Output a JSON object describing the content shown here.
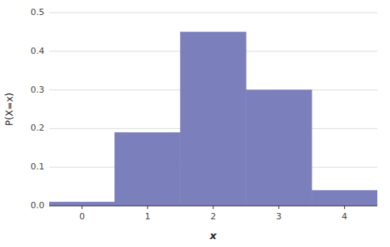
{
  "chart_data": {
    "type": "bar",
    "xlabel": "x",
    "ylabel": "P(X=x)",
    "x": [
      0,
      1,
      2,
      3,
      4
    ],
    "values": [
      0.01,
      0.19,
      0.45,
      0.3,
      0.04
    ],
    "color": "#7b7fbc",
    "xlim": [
      -0.5,
      4.5
    ],
    "xticks": [
      0,
      1,
      2,
      3,
      4
    ],
    "ylim": [
      0,
      0.5
    ],
    "yticks": [
      {
        "value": 0,
        "label": "0.0"
      },
      0.1,
      0.2,
      0.3,
      0.4,
      0.5
    ],
    "grid": true
  }
}
